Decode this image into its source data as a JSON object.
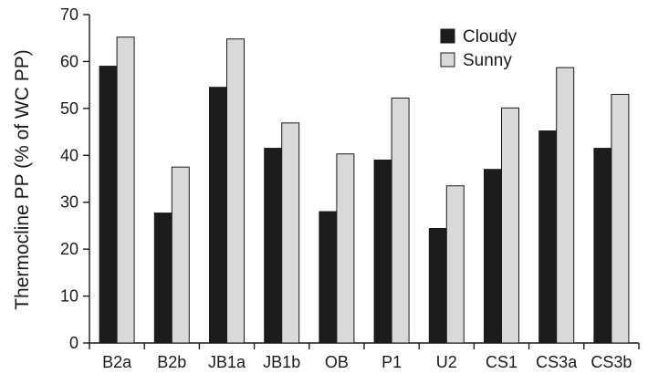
{
  "chart_data": {
    "type": "bar",
    "title": "",
    "xlabel": "",
    "ylabel": "Thermocline PP (% of WC PP)",
    "ylim": [
      0,
      70
    ],
    "yticks": [
      0,
      10,
      20,
      30,
      40,
      50,
      60,
      70
    ],
    "grid": false,
    "legend_position": "top-right",
    "categories": [
      "B2a",
      "B2b",
      "JB1a",
      "JB1b",
      "OB",
      "P1",
      "U2",
      "CS1",
      "CS3a",
      "CS3b"
    ],
    "series": [
      {
        "name": "Cloudy",
        "color": "#1c1c1c",
        "values": [
          59.0,
          27.7,
          54.5,
          41.5,
          28.0,
          39.0,
          24.4,
          37.0,
          45.2,
          41.5
        ]
      },
      {
        "name": "Sunny",
        "color": "#d9d9d9",
        "values": [
          65.2,
          37.5,
          64.8,
          46.9,
          40.3,
          52.2,
          33.5,
          50.1,
          58.7,
          53.0
        ]
      }
    ]
  }
}
